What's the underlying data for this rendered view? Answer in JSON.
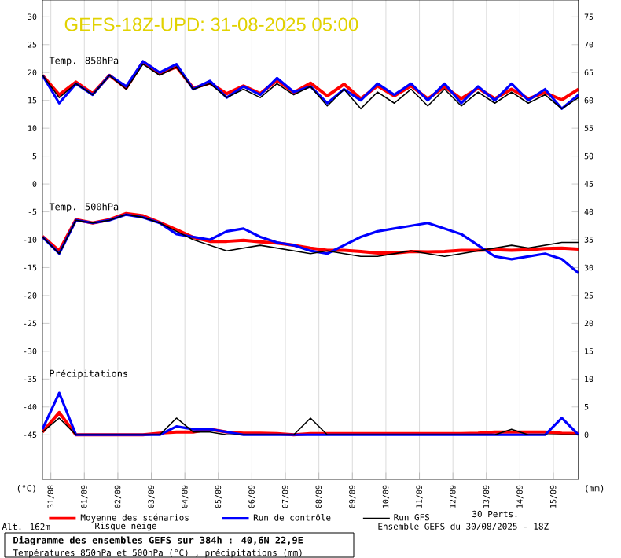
{
  "chart_data": {
    "type": "line",
    "title": "GEFS-18Z-UPD:  31-08-2025  05:00",
    "ylabel": "(°C)",
    "y2label": "(mm)",
    "annotations": [
      "Temp. 850hPa",
      "Temp. 500hPa",
      "Précipitations",
      "Alt. 162m",
      "30 Perts.",
      "Risque neige",
      "**Diagramme des ensembles GEFS sur 384h : 40,6N 22,9E**",
      "Températures 850hPa et 500hPa (°C) , précipitations (mm)",
      "Ensemble GEFS du 30/08/2025 - 18Z"
    ],
    "x": [
      "2025-08-30T18:00",
      "2025-08-31T06:00",
      "2025-08-31T18:00",
      "2025-09-01T06:00",
      "2025-09-01T18:00",
      "2025-09-02T06:00",
      "2025-09-02T18:00",
      "2025-09-03T06:00",
      "2025-09-03T18:00",
      "2025-09-04T06:00",
      "2025-09-04T18:00",
      "2025-09-05T06:00",
      "2025-09-05T18:00",
      "2025-09-06T06:00",
      "2025-09-06T18:00",
      "2025-09-07T06:00",
      "2025-09-07T18:00",
      "2025-09-08T06:00",
      "2025-09-08T18:00",
      "2025-09-09T06:00",
      "2025-09-09T18:00",
      "2025-09-10T06:00",
      "2025-09-10T18:00",
      "2025-09-11T06:00",
      "2025-09-11T18:00",
      "2025-09-12T06:00",
      "2025-09-12T18:00",
      "2025-09-13T06:00",
      "2025-09-13T18:00",
      "2025-09-14T06:00",
      "2025-09-14T18:00",
      "2025-09-15T06:00",
      "2025-09-15T18:00"
    ],
    "xlim": [
      "2025-08-30T18:00",
      "2025-09-15T18:00"
    ],
    "xticks": [
      {
        "value": "2025-08-31",
        "label": "31/08"
      },
      {
        "value": "2025-09-01",
        "label": "01/09"
      },
      {
        "value": "2025-09-02",
        "label": "02/09"
      },
      {
        "value": "2025-09-03",
        "label": "03/09"
      },
      {
        "value": "2025-09-04",
        "label": "04/09"
      },
      {
        "value": "2025-09-05",
        "label": "05/09"
      },
      {
        "value": "2025-09-06",
        "label": "06/09"
      },
      {
        "value": "2025-09-07",
        "label": "07/09"
      },
      {
        "value": "2025-09-08",
        "label": "08/09"
      },
      {
        "value": "2025-09-09",
        "label": "09/09"
      },
      {
        "value": "2025-09-10",
        "label": "10/09"
      },
      {
        "value": "2025-09-11",
        "label": "11/09"
      },
      {
        "value": "2025-09-12",
        "label": "12/09"
      },
      {
        "value": "2025-09-13",
        "label": "13/09"
      },
      {
        "value": "2025-09-14",
        "label": "14/09"
      },
      {
        "value": "2025-09-15",
        "label": "15/09"
      }
    ],
    "ylim": [
      -53,
      33
    ],
    "yticks": [
      -45,
      -40,
      -35,
      -30,
      -25,
      -20,
      -15,
      -10,
      -5,
      0,
      5,
      10,
      15,
      20,
      25,
      30
    ],
    "y2lim": [
      -8,
      78
    ],
    "y2ticks": [
      0,
      5,
      10,
      15,
      20,
      25,
      30,
      35,
      40,
      45,
      50,
      55,
      60,
      65,
      70,
      75
    ],
    "grid": "x",
    "legend": "bottom",
    "marker": "none",
    "line_style": "solid",
    "series": [
      {
        "name": "Moyenne des scénarios",
        "color": "#ff0000",
        "values": [
          19.5,
          16,
          18.3,
          16.2,
          19.5,
          17.2,
          21.9,
          19.8,
          21,
          17.2,
          18.1,
          16.2,
          17.6,
          16.2,
          18.6,
          16.4,
          18.1,
          15.8,
          17.9,
          15.3,
          17.6,
          15.8,
          17.6,
          15.3,
          17.4,
          15.3,
          17.2,
          15.3,
          17,
          15.3,
          16.4,
          15.1,
          17
        ]
      },
      {
        "name": "Run de contrôle",
        "color": "#0000ff",
        "values": [
          19.5,
          14.5,
          18,
          16,
          19.5,
          17.5,
          22,
          20,
          21.5,
          17,
          18.5,
          15.5,
          17.5,
          16,
          19,
          16.5,
          17.5,
          14.5,
          17,
          15,
          18,
          16,
          18,
          15,
          18,
          14.5,
          17.5,
          15,
          18,
          15,
          17,
          13.5,
          16
        ]
      },
      {
        "name": "Run GFS",
        "color": "#000000",
        "values": [
          19.5,
          15.5,
          18,
          16,
          19.5,
          17,
          21.5,
          19.5,
          21,
          17,
          18,
          15.5,
          17,
          15.5,
          18,
          16,
          17.5,
          14,
          17,
          13.5,
          16.5,
          14.5,
          17,
          14,
          17,
          14,
          16.5,
          14.5,
          16.5,
          14.5,
          16,
          13.5,
          15.5
        ]
      },
      {
        "color": "#ff0000",
        "values": [
          -9.4,
          -12,
          -6.4,
          -7,
          -6.4,
          -5.3,
          -5.7,
          -6.9,
          -8.2,
          -9.6,
          -10.3,
          -10.3,
          -10.1,
          -10.4,
          -10.6,
          -11,
          -11.5,
          -11.9,
          -11.9,
          -12.1,
          -12.4,
          -12.4,
          -12.1,
          -12.2,
          -12.1,
          -11.9,
          -11.9,
          -11.8,
          -11.9,
          -11.8,
          -11.6,
          -11.5,
          -11.7
        ]
      },
      {
        "color": "#0000ff",
        "values": [
          -9.5,
          -12.5,
          -6.5,
          -7,
          -6.5,
          -5.5,
          -6,
          -7,
          -9,
          -9.5,
          -10,
          -8.5,
          -8,
          -9.5,
          -10.5,
          -11,
          -12,
          -12.5,
          -11,
          -9.5,
          -8.5,
          -8,
          -7.5,
          -7,
          -8,
          -9,
          -11,
          -13,
          -13.5,
          -13,
          -12.5,
          -13.5,
          -16
        ]
      },
      {
        "color": "#000000",
        "values": [
          -9.5,
          -12.5,
          -6.5,
          -7,
          -6.5,
          -5.5,
          -6,
          -7,
          -8.5,
          -10,
          -11,
          -12,
          -11.5,
          -11,
          -11.5,
          -12,
          -12.5,
          -12,
          -12.5,
          -13,
          -13,
          -12.5,
          -12,
          -12.5,
          -13,
          -12.5,
          -12,
          -11.5,
          -11,
          -11.5,
          -11,
          -10.5,
          -10.5
        ]
      },
      {
        "color": "#ff0000",
        "axis": "y2",
        "values": [
          0.5,
          4,
          0,
          0,
          0,
          0,
          0,
          0.3,
          0.5,
          0.5,
          1,
          0.5,
          0.3,
          0.3,
          0.2,
          0,
          0.2,
          0.2,
          0.2,
          0.2,
          0.2,
          0.2,
          0.2,
          0.2,
          0.2,
          0.2,
          0.3,
          0.5,
          0.5,
          0.5,
          0.5,
          0.3,
          0.2
        ]
      },
      {
        "color": "#0000ff",
        "axis": "y2",
        "values": [
          1,
          7.5,
          0,
          0,
          0,
          0,
          0,
          0,
          1.5,
          1,
          1,
          0.5,
          0,
          0,
          0,
          0,
          0,
          0,
          0,
          0,
          0,
          0,
          0,
          0,
          0,
          0,
          0,
          0,
          0,
          0,
          0,
          3,
          0
        ]
      },
      {
        "color": "#000000",
        "axis": "y2",
        "values": [
          0.5,
          3,
          0,
          0,
          0,
          0,
          0,
          0,
          3,
          0.5,
          0.5,
          0,
          0,
          0,
          0,
          0,
          3,
          0,
          0,
          0,
          0,
          0,
          0,
          0,
          0,
          0,
          0,
          0,
          1,
          0,
          0,
          0,
          0
        ]
      }
    ]
  }
}
